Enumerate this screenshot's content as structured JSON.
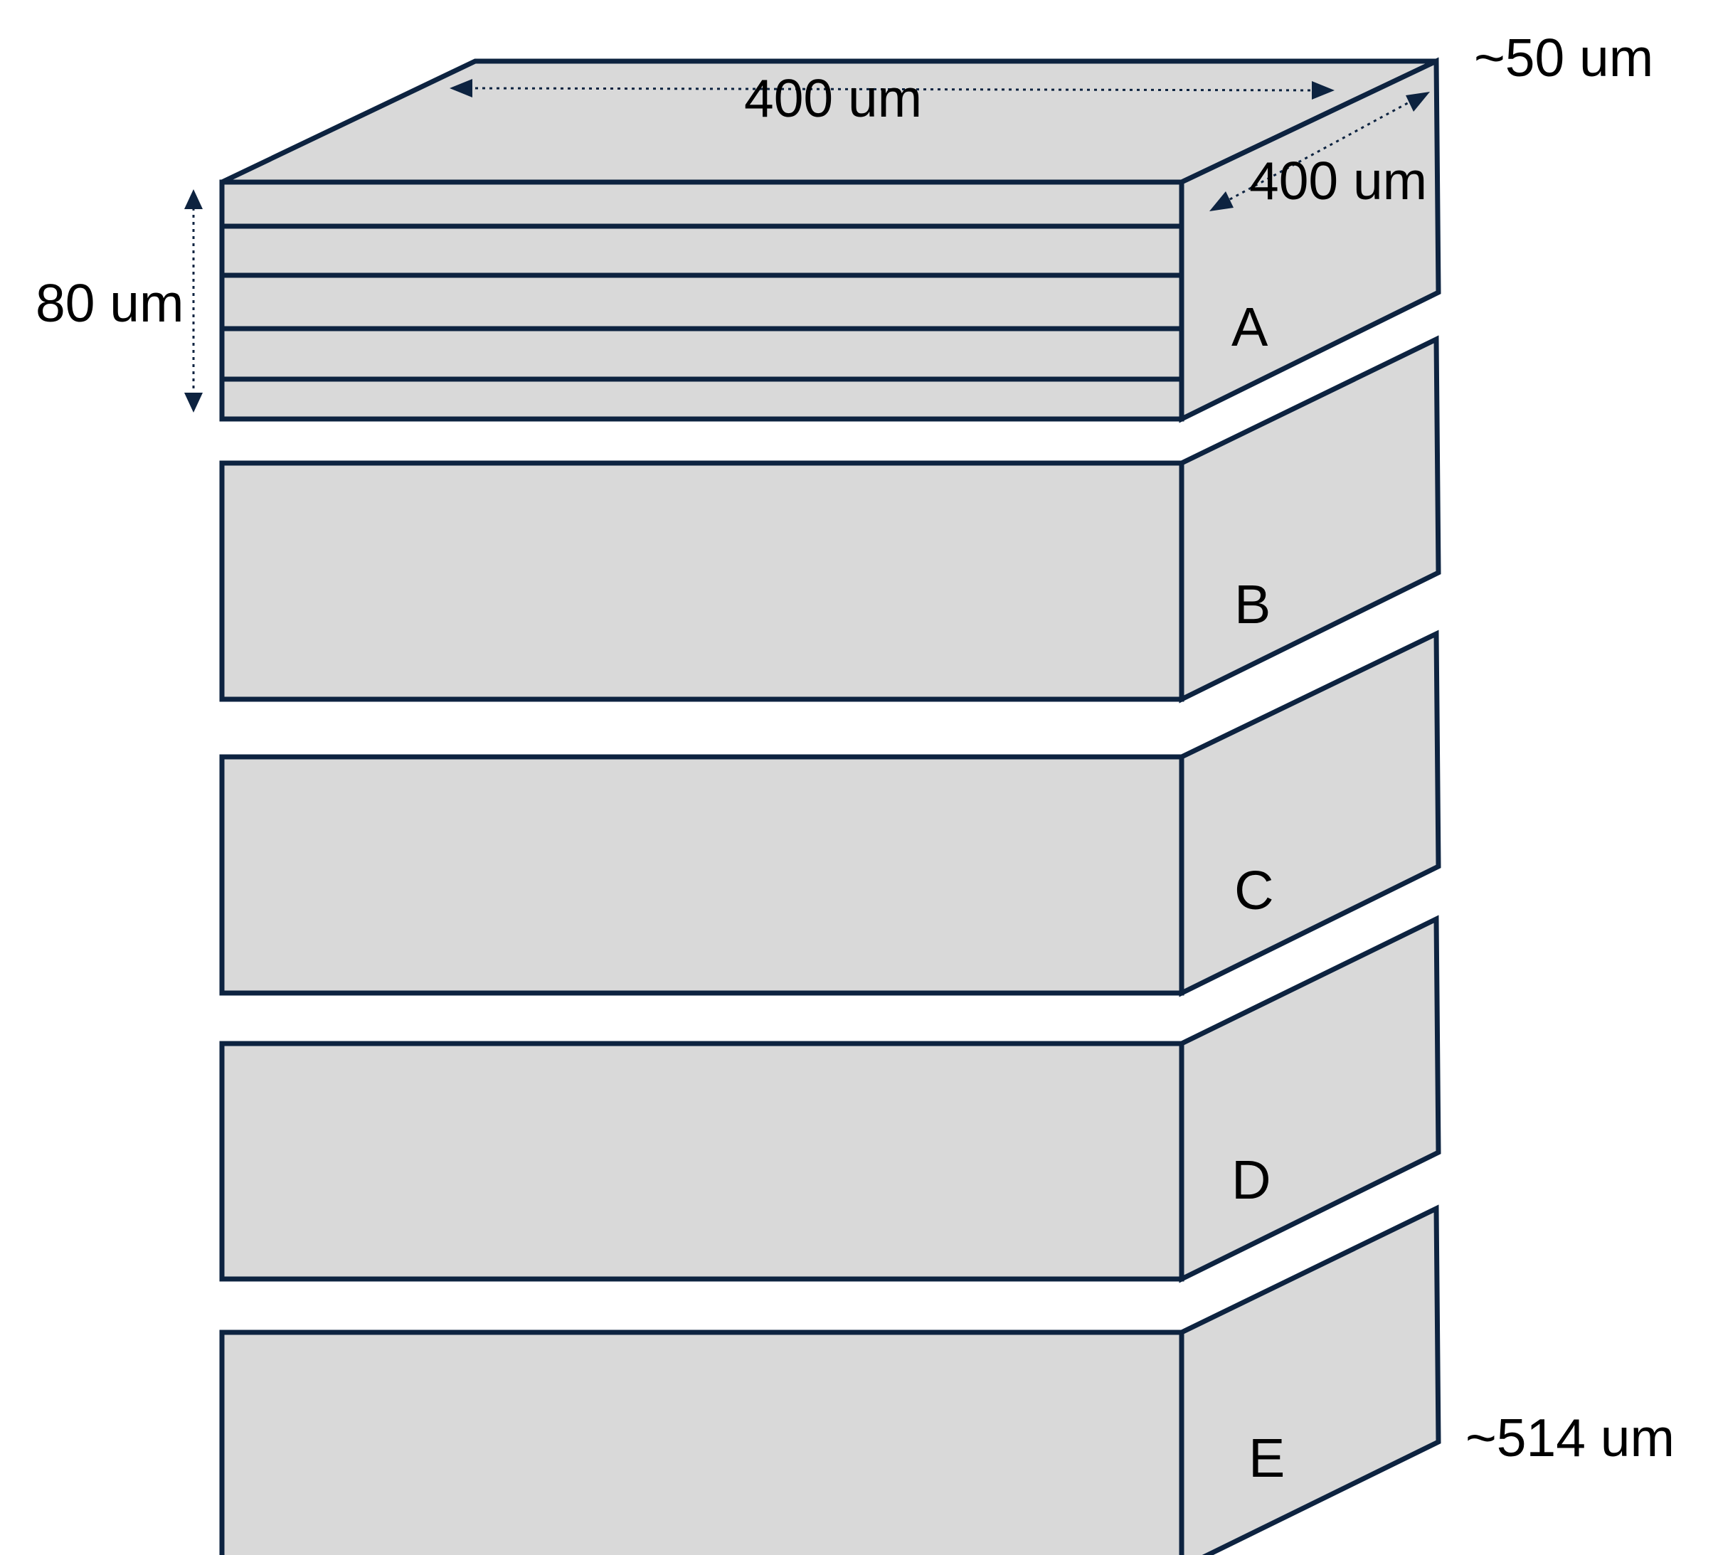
{
  "dimensions": {
    "width_top": "400 um",
    "depth": "400 um",
    "layer_height": "80 um",
    "top_thickness": "~50 um",
    "total_thickness": "~514 um"
  },
  "blocks": [
    {
      "label": "A"
    },
    {
      "label": "B"
    },
    {
      "label": "C"
    },
    {
      "label": "D"
    },
    {
      "label": "E"
    }
  ],
  "colors": {
    "fill": "#d9d9d9",
    "stroke": "#0d2340"
  }
}
